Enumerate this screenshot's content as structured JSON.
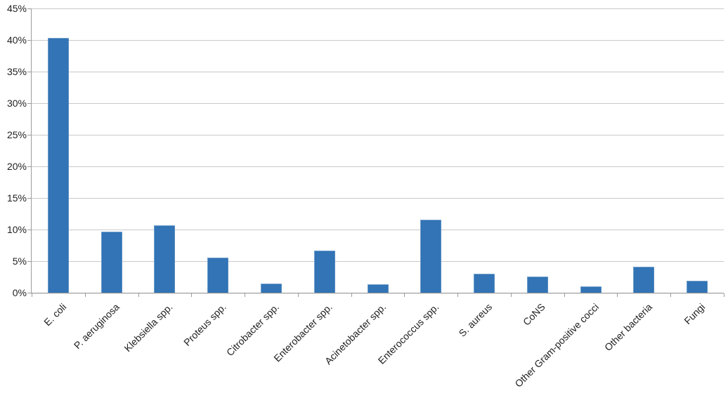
{
  "chart_data": {
    "type": "bar",
    "title": "",
    "xlabel": "",
    "ylabel": "",
    "categories": [
      "E. coli",
      "P. aeruginosa",
      "Klebsiella spp.",
      "Proteus spp.",
      "Citrobacter spp.",
      "Enterobacter spp.",
      "Acinetobacter spp.",
      "Enterococcus spp.",
      "S. aureus",
      "CoNS",
      "Other Gram-positive cocci",
      "Other bacteria",
      "Fungi"
    ],
    "values": [
      40.3,
      9.7,
      10.7,
      5.6,
      1.4,
      6.7,
      1.3,
      11.6,
      3.0,
      2.6,
      1.0,
      4.1,
      1.9
    ],
    "values_unit": "percent",
    "ylim": [
      0,
      45
    ],
    "y_tick_step": 5,
    "y_ticks": [
      "0%",
      "5%",
      "10%",
      "15%",
      "20%",
      "25%",
      "30%",
      "35%",
      "40%",
      "45%"
    ],
    "grid": true,
    "legend": false,
    "x_label_rotation_deg": 45,
    "colors": {
      "bar": "#3274B5",
      "gridline": "#C9C9C9",
      "axis": "#9C9C9C",
      "text": "#1F1F1F",
      "background": "#FFFFFF"
    }
  }
}
